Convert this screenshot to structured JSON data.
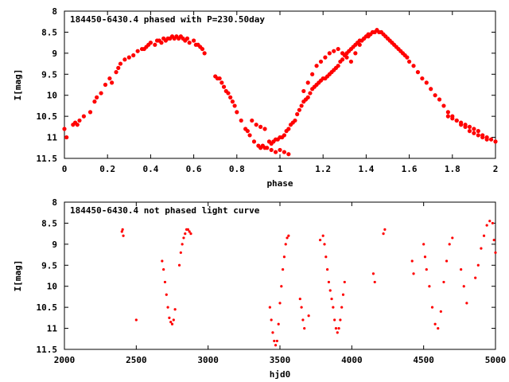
{
  "chart_data": [
    {
      "type": "scatter",
      "title": "184450-6430.4 phased with P=230.50day",
      "xlabel": "phase",
      "ylabel": "I[mag]",
      "xlim": [
        0,
        2
      ],
      "ylim": [
        11.5,
        8
      ],
      "y_inverted": true,
      "xticks": [
        "0",
        "0.2",
        "0.4",
        "0.6",
        "0.8",
        "1",
        "1.2",
        "1.4",
        "1.6",
        "1.8",
        "2"
      ],
      "yticks": [
        "8",
        "8.5",
        "9",
        "9.5",
        "10",
        "10.5",
        "11",
        "11.5"
      ],
      "marker": "filled-circle-cross",
      "color": "#ff0000",
      "series": [
        {
          "x": [
            0.0,
            0.01,
            0.04,
            0.05,
            0.06,
            0.07,
            0.09,
            0.12,
            0.14,
            0.15,
            0.17,
            0.19,
            0.21,
            0.22,
            0.24,
            0.25,
            0.26,
            0.28,
            0.3,
            0.32,
            0.34,
            0.36,
            0.37,
            0.38,
            0.39,
            0.4,
            0.42,
            0.43,
            0.44,
            0.45,
            0.46,
            0.47,
            0.48,
            0.49,
            0.5,
            0.51,
            0.52,
            0.53,
            0.54,
            0.55,
            0.56,
            0.57,
            0.58,
            0.6,
            0.61,
            0.62,
            0.63,
            0.64,
            0.65,
            0.7,
            0.71,
            0.72,
            0.73,
            0.74,
            0.75,
            0.76,
            0.77,
            0.78,
            0.79,
            0.8,
            0.82,
            0.84,
            0.85,
            0.86,
            0.88,
            0.9,
            0.91,
            0.92,
            0.93,
            0.94,
            0.95,
            0.96,
            0.97,
            0.98,
            0.99,
            1.0,
            1.01,
            1.02,
            1.03,
            1.04,
            1.05,
            1.06,
            1.07,
            1.08,
            1.09,
            1.1,
            1.11,
            1.12,
            1.13,
            1.14,
            1.15,
            1.16,
            1.17,
            1.18,
            1.19,
            1.2,
            1.21,
            1.22,
            1.23,
            1.24,
            1.25,
            1.26,
            1.27,
            1.28,
            1.29,
            1.3,
            1.31,
            1.32,
            1.33,
            1.34,
            1.35,
            1.36,
            1.37,
            1.38,
            1.39,
            1.4,
            1.41,
            1.42,
            1.43,
            1.44,
            1.45,
            1.46,
            1.47,
            1.48,
            1.49,
            1.5,
            1.51,
            1.52,
            1.53,
            1.54,
            1.55,
            1.56,
            1.57,
            1.58,
            1.59,
            1.6,
            1.62,
            1.64,
            1.66,
            1.68,
            1.7,
            1.72,
            1.74,
            1.76,
            1.78,
            1.8,
            1.82,
            1.84,
            1.86,
            1.88,
            1.9,
            1.92,
            1.94,
            1.96,
            1.98,
            2.0,
            1.11,
            1.13,
            1.15,
            1.17,
            1.19,
            1.21,
            1.23,
            1.25,
            1.27,
            1.29,
            1.31,
            1.33,
            1.35,
            1.37,
            1.39,
            1.41,
            1.43,
            1.45,
            1.47,
            0.96,
            0.98,
            1.0,
            1.02,
            1.04,
            0.87,
            0.89,
            0.91,
            0.93,
            1.78,
            1.8,
            1.82,
            1.84,
            1.86,
            1.88,
            1.9,
            1.92,
            1.94,
            1.96
          ],
          "y": [
            10.8,
            11.0,
            10.7,
            10.65,
            10.7,
            10.6,
            10.5,
            10.4,
            10.15,
            10.05,
            9.95,
            9.75,
            9.6,
            9.7,
            9.45,
            9.35,
            9.25,
            9.15,
            9.1,
            9.05,
            8.95,
            8.9,
            8.9,
            8.85,
            8.8,
            8.75,
            8.8,
            8.7,
            8.7,
            8.75,
            8.65,
            8.7,
            8.65,
            8.65,
            8.6,
            8.65,
            8.6,
            8.65,
            8.6,
            8.65,
            8.7,
            8.65,
            8.75,
            8.7,
            8.8,
            8.8,
            8.85,
            8.9,
            9.0,
            9.55,
            9.6,
            9.6,
            9.7,
            9.8,
            9.9,
            9.95,
            10.05,
            10.15,
            10.25,
            10.4,
            10.6,
            10.8,
            10.85,
            10.95,
            11.1,
            11.2,
            11.25,
            11.2,
            11.25,
            11.25,
            11.1,
            11.15,
            11.1,
            11.05,
            11.05,
            11.0,
            11.0,
            10.95,
            10.85,
            10.8,
            10.7,
            10.65,
            10.6,
            10.45,
            10.35,
            10.25,
            10.15,
            10.1,
            10.05,
            9.95,
            9.85,
            9.8,
            9.75,
            9.7,
            9.65,
            9.6,
            9.6,
            9.55,
            9.5,
            9.45,
            9.4,
            9.35,
            9.3,
            9.2,
            9.15,
            9.05,
            9.0,
            8.95,
            8.9,
            8.85,
            8.8,
            8.75,
            8.7,
            8.7,
            8.65,
            8.6,
            8.6,
            8.55,
            8.5,
            8.5,
            8.45,
            8.5,
            8.5,
            8.55,
            8.6,
            8.65,
            8.7,
            8.75,
            8.8,
            8.85,
            8.9,
            8.95,
            9.0,
            9.05,
            9.1,
            9.2,
            9.3,
            9.45,
            9.6,
            9.7,
            9.85,
            10.0,
            10.1,
            10.25,
            10.4,
            10.5,
            10.6,
            10.7,
            10.75,
            10.85,
            10.9,
            10.95,
            11.0,
            11.05,
            11.05,
            11.1,
            9.9,
            9.7,
            9.5,
            9.3,
            9.2,
            9.1,
            9.0,
            8.95,
            8.9,
            9.0,
            9.1,
            9.2,
            9.0,
            8.8,
            8.65,
            8.55,
            8.5,
            8.45,
            8.5,
            11.3,
            11.35,
            11.3,
            11.35,
            11.4,
            10.6,
            10.7,
            10.75,
            10.8,
            10.5,
            10.55,
            10.6,
            10.65,
            10.7,
            10.75,
            10.8,
            10.85,
            10.95,
            11.0
          ]
        }
      ]
    },
    {
      "type": "scatter",
      "title": "184450-6430.4 not phased light curve",
      "xlabel": "hjd0",
      "ylabel": "I[mag]",
      "xlim": [
        2000,
        5000
      ],
      "ylim": [
        11.5,
        8
      ],
      "y_inverted": true,
      "xticks": [
        "2000",
        "2500",
        "3000",
        "3500",
        "4000",
        "4500",
        "5000"
      ],
      "yticks": [
        "8",
        "8.5",
        "9",
        "9.5",
        "10",
        "10.5",
        "11",
        "11.5"
      ],
      "marker": "small-dot",
      "color": "#ff0000",
      "series": [
        {
          "x": [
            2400,
            2405,
            2410,
            2500,
            2680,
            2690,
            2700,
            2710,
            2720,
            2730,
            2740,
            2750,
            2760,
            2770,
            2800,
            2810,
            2820,
            2830,
            2840,
            2850,
            2860,
            2870,
            2880,
            3430,
            3440,
            3450,
            3460,
            3470,
            3480,
            3490,
            3500,
            3510,
            3520,
            3530,
            3540,
            3550,
            3560,
            3640,
            3650,
            3660,
            3670,
            3700,
            3780,
            3800,
            3810,
            3820,
            3830,
            3840,
            3850,
            3860,
            3870,
            3880,
            3890,
            3900,
            3910,
            3920,
            3930,
            3940,
            3950,
            4150,
            4160,
            4220,
            4230,
            4420,
            4430,
            4500,
            4510,
            4520,
            4540,
            4560,
            4580,
            4600,
            4620,
            4640,
            4660,
            4680,
            4700,
            4760,
            4780,
            4800,
            4860,
            4880,
            4900,
            4920,
            4940,
            4960,
            4980,
            4990,
            5000
          ],
          "y": [
            8.7,
            8.65,
            8.8,
            10.8,
            9.4,
            9.6,
            9.9,
            10.2,
            10.5,
            10.75,
            10.85,
            10.9,
            10.8,
            10.55,
            9.5,
            9.2,
            9.0,
            8.85,
            8.75,
            8.65,
            8.65,
            8.7,
            8.75,
            10.5,
            10.8,
            11.1,
            11.3,
            11.4,
            11.3,
            10.9,
            10.4,
            10.0,
            9.6,
            9.3,
            9.0,
            8.85,
            8.8,
            10.3,
            10.5,
            10.8,
            11.0,
            10.7,
            8.9,
            8.8,
            9.0,
            9.3,
            9.6,
            9.9,
            10.1,
            10.3,
            10.5,
            10.8,
            11.0,
            11.1,
            11.0,
            10.8,
            10.5,
            10.2,
            9.9,
            9.7,
            9.9,
            8.75,
            8.65,
            9.4,
            9.7,
            9.0,
            9.3,
            9.6,
            10.0,
            10.5,
            10.9,
            11.0,
            10.6,
            9.9,
            9.4,
            9.0,
            8.85,
            9.6,
            10.0,
            10.4,
            9.8,
            9.5,
            9.1,
            8.8,
            8.55,
            8.45,
            8.5,
            8.9,
            9.2
          ]
        }
      ]
    }
  ]
}
